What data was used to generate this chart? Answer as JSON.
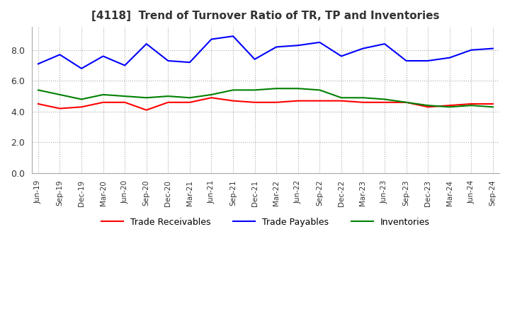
{
  "title": "[4118]  Trend of Turnover Ratio of TR, TP and Inventories",
  "x_labels": [
    "Jun-19",
    "Sep-19",
    "Dec-19",
    "Mar-20",
    "Jun-20",
    "Sep-20",
    "Dec-20",
    "Mar-21",
    "Jun-21",
    "Sep-21",
    "Dec-21",
    "Mar-22",
    "Jun-22",
    "Sep-22",
    "Dec-22",
    "Mar-23",
    "Jun-23",
    "Sep-23",
    "Dec-23",
    "Mar-24",
    "Jun-24",
    "Sep-24"
  ],
  "trade_receivables": [
    4.5,
    4.2,
    4.3,
    4.6,
    4.6,
    4.1,
    4.6,
    4.6,
    4.9,
    4.7,
    4.6,
    4.6,
    4.7,
    4.7,
    4.7,
    4.6,
    4.6,
    4.6,
    4.3,
    4.4,
    4.5,
    4.5
  ],
  "trade_payables": [
    7.1,
    7.7,
    6.8,
    7.6,
    7.0,
    8.4,
    7.3,
    7.2,
    8.7,
    8.9,
    7.4,
    8.2,
    8.3,
    8.5,
    7.6,
    8.1,
    8.4,
    7.3,
    7.3,
    7.5,
    8.0,
    8.1
  ],
  "inventories": [
    5.4,
    5.1,
    4.8,
    5.1,
    5.0,
    4.9,
    5.0,
    4.9,
    5.1,
    5.4,
    5.4,
    5.5,
    5.5,
    5.4,
    4.9,
    4.9,
    4.8,
    4.6,
    4.4,
    4.3,
    4.4,
    4.3
  ],
  "ylim": [
    0.0,
    9.5
  ],
  "yticks": [
    0.0,
    2.0,
    4.0,
    6.0,
    8.0
  ],
  "color_tr": "#ff0000",
  "color_tp": "#0000ff",
  "color_inv": "#008000",
  "bg_color": "#ffffff",
  "grid_color": "#aaaaaa",
  "legend_labels": [
    "Trade Receivables",
    "Trade Payables",
    "Inventories"
  ]
}
